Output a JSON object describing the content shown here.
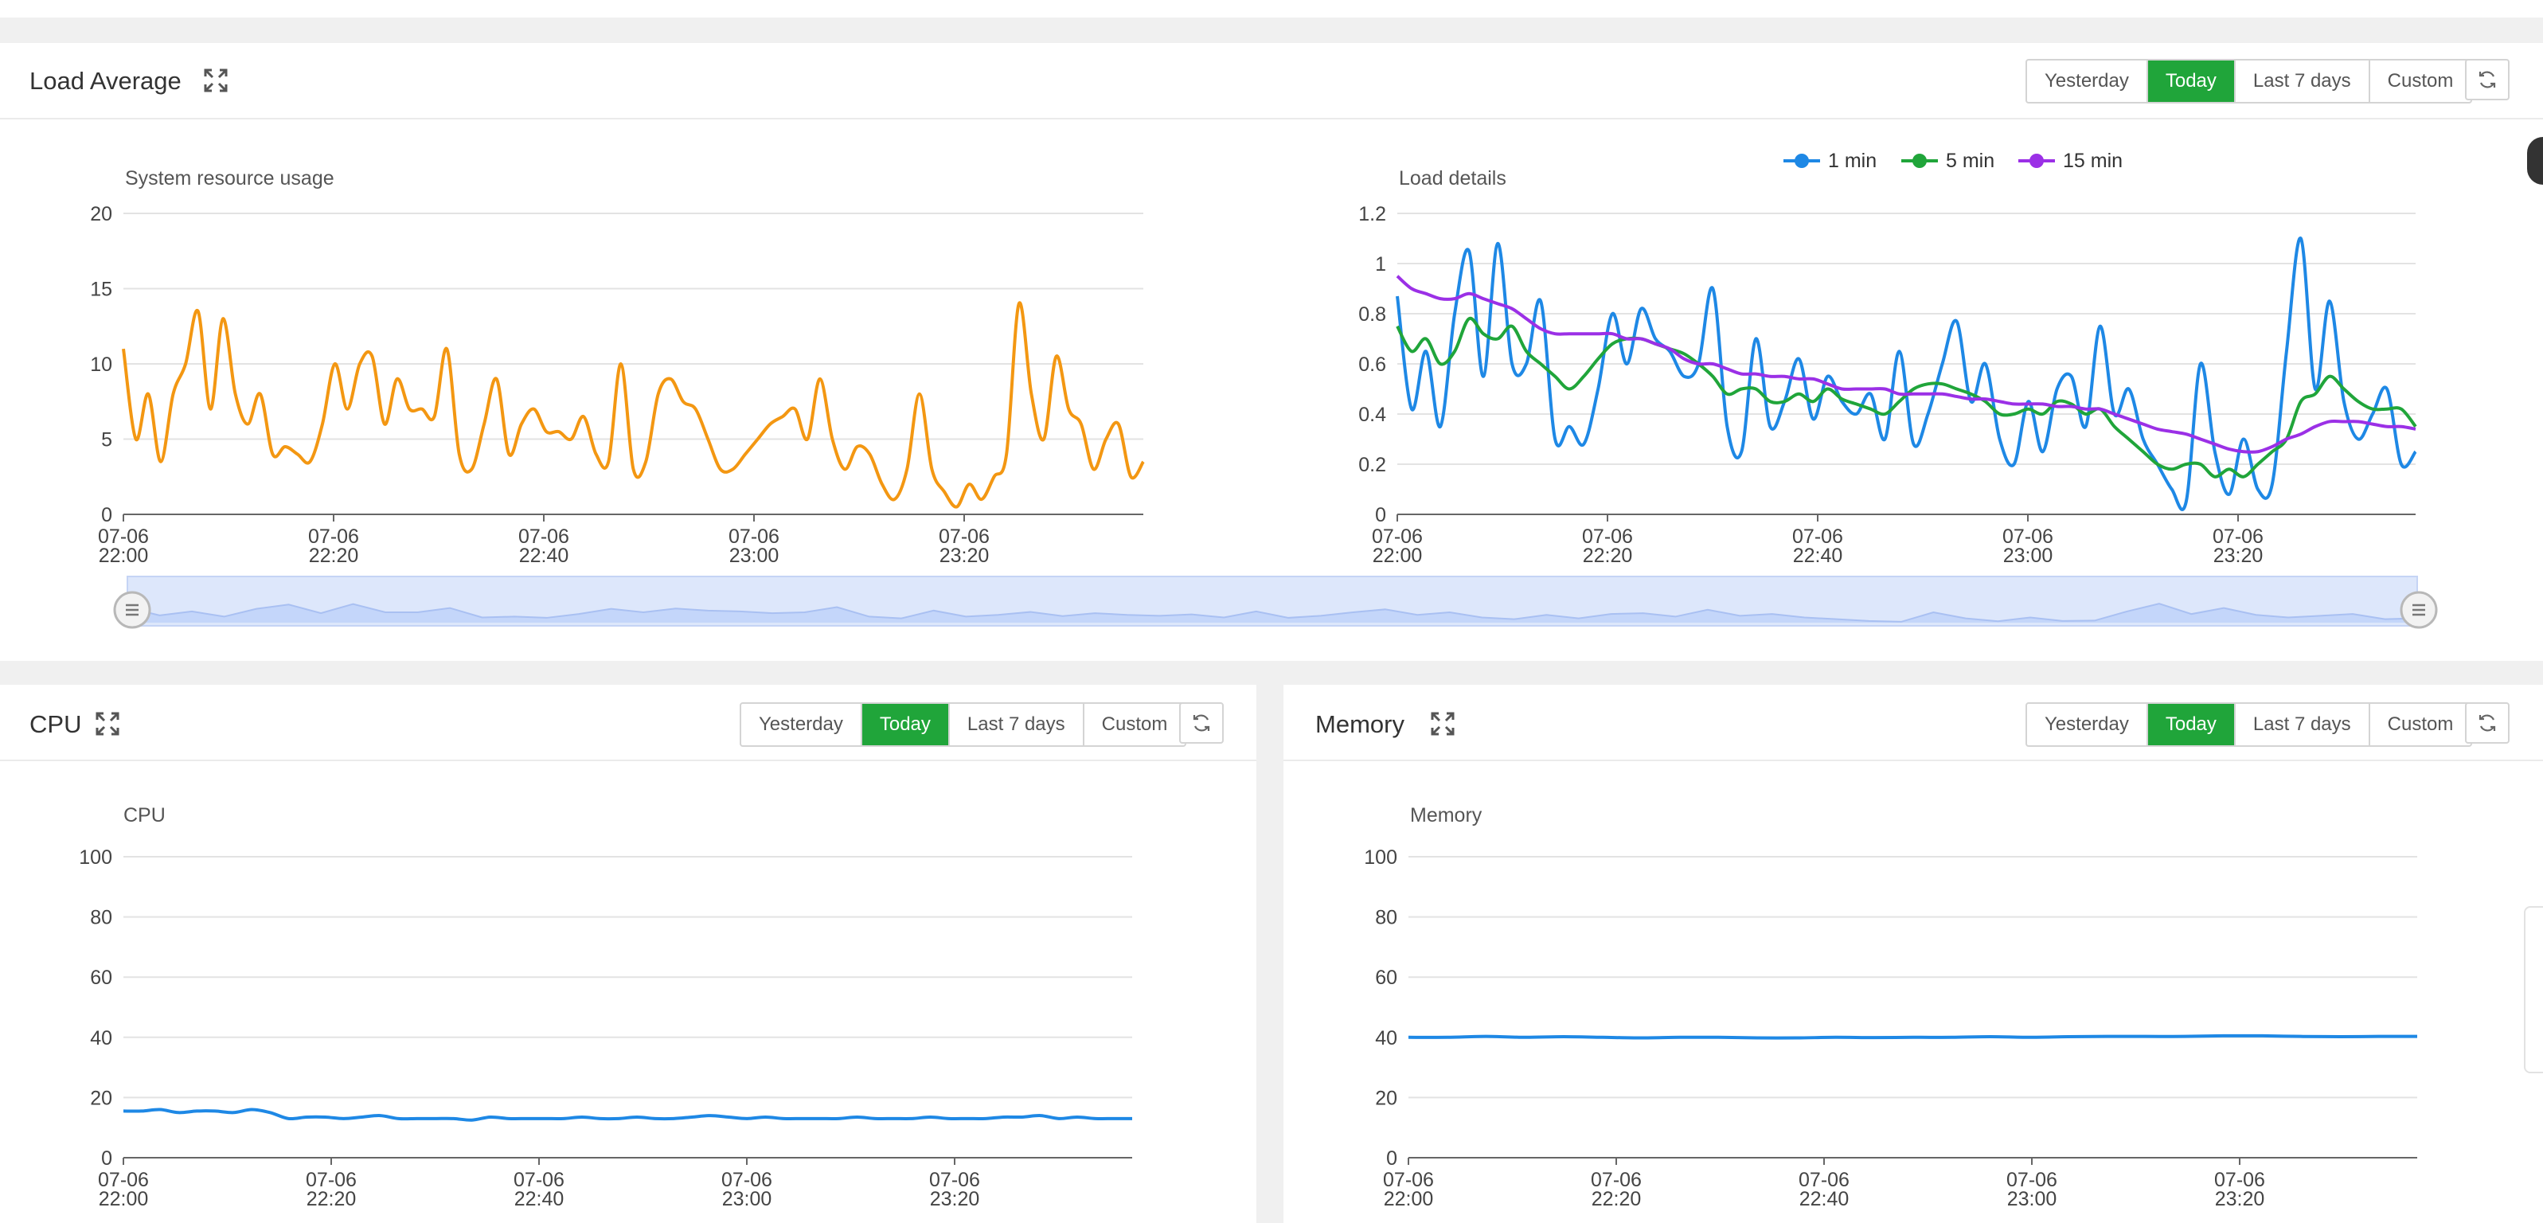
{
  "range_buttons": [
    "Yesterday",
    "Today",
    "Last 7 days",
    "Custom"
  ],
  "load_panel": {
    "title": "Load Average",
    "left_chart": {
      "title": "System resource usage",
      "yticks": [
        "0",
        "5",
        "10",
        "15",
        "20"
      ],
      "ylim": [
        0,
        20
      ],
      "xticks": [
        [
          "07-06",
          "22:00"
        ],
        [
          "07-06",
          "22:20"
        ],
        [
          "07-06",
          "22:40"
        ],
        [
          "07-06",
          "23:00"
        ],
        [
          "07-06",
          "23:20"
        ]
      ],
      "color": "#f39712",
      "values": [
        11,
        5,
        8,
        3.5,
        8,
        10,
        13.5,
        7,
        13,
        8,
        6,
        8,
        4,
        4.5,
        4,
        3.5,
        6,
        10,
        7,
        10,
        10.5,
        6,
        9,
        7,
        7,
        6.5,
        11,
        4,
        3,
        6,
        9,
        4,
        6,
        7,
        5.5,
        5.5,
        5,
        6.5,
        4,
        3.5,
        10,
        3,
        3.5,
        8,
        9,
        7.5,
        7,
        5,
        3,
        3,
        4,
        5,
        6,
        6.5,
        7,
        5,
        9,
        5,
        3,
        4.5,
        4,
        2,
        1,
        3,
        8,
        3,
        1.5,
        0.5,
        2,
        1,
        2.5,
        4,
        14,
        8,
        5,
        10.5,
        7,
        6,
        3,
        5,
        6,
        2.5,
        3.5
      ]
    },
    "right_chart": {
      "title": "Load details",
      "yticks": [
        "0",
        "0.2",
        "0.4",
        "0.6",
        "0.8",
        "1",
        "1.2"
      ],
      "ylim": [
        0,
        1.2
      ],
      "xticks": [
        [
          "07-06",
          "22:00"
        ],
        [
          "07-06",
          "22:20"
        ],
        [
          "07-06",
          "22:40"
        ],
        [
          "07-06",
          "23:00"
        ],
        [
          "07-06",
          "23:20"
        ]
      ],
      "legend": [
        "1 min",
        "5 min",
        "15 min"
      ],
      "series": [
        {
          "name": "1 min",
          "color": "#1e88e5",
          "values": [
            0.87,
            0.42,
            0.65,
            0.35,
            0.8,
            1.05,
            0.55,
            1.08,
            0.6,
            0.6,
            0.85,
            0.3,
            0.35,
            0.28,
            0.5,
            0.8,
            0.6,
            0.82,
            0.7,
            0.65,
            0.55,
            0.6,
            0.9,
            0.35,
            0.25,
            0.7,
            0.35,
            0.45,
            0.62,
            0.38,
            0.55,
            0.45,
            0.4,
            0.48,
            0.3,
            0.65,
            0.28,
            0.4,
            0.6,
            0.77,
            0.45,
            0.6,
            0.3,
            0.2,
            0.45,
            0.25,
            0.5,
            0.55,
            0.35,
            0.75,
            0.4,
            0.5,
            0.3,
            0.2,
            0.1,
            0.05,
            0.6,
            0.25,
            0.08,
            0.3,
            0.1,
            0.12,
            0.65,
            1.1,
            0.5,
            0.85,
            0.45,
            0.3,
            0.4,
            0.5,
            0.2,
            0.25
          ]
        },
        {
          "name": "5 min",
          "color": "#20a53a",
          "values": [
            0.75,
            0.65,
            0.7,
            0.6,
            0.65,
            0.78,
            0.72,
            0.7,
            0.75,
            0.65,
            0.6,
            0.55,
            0.5,
            0.55,
            0.62,
            0.68,
            0.7,
            0.7,
            0.68,
            0.66,
            0.64,
            0.6,
            0.55,
            0.48,
            0.5,
            0.5,
            0.45,
            0.45,
            0.48,
            0.45,
            0.5,
            0.46,
            0.44,
            0.42,
            0.4,
            0.45,
            0.5,
            0.52,
            0.52,
            0.5,
            0.48,
            0.45,
            0.4,
            0.4,
            0.42,
            0.4,
            0.45,
            0.44,
            0.4,
            0.42,
            0.35,
            0.3,
            0.25,
            0.2,
            0.18,
            0.2,
            0.2,
            0.15,
            0.18,
            0.15,
            0.2,
            0.25,
            0.3,
            0.45,
            0.48,
            0.55,
            0.5,
            0.45,
            0.42,
            0.42,
            0.42,
            0.35
          ]
        },
        {
          "name": "15 min",
          "color": "#9b30e6",
          "values": [
            0.95,
            0.9,
            0.88,
            0.86,
            0.86,
            0.88,
            0.86,
            0.84,
            0.82,
            0.78,
            0.74,
            0.72,
            0.72,
            0.72,
            0.72,
            0.72,
            0.7,
            0.7,
            0.68,
            0.66,
            0.62,
            0.6,
            0.6,
            0.58,
            0.56,
            0.56,
            0.55,
            0.55,
            0.54,
            0.54,
            0.52,
            0.5,
            0.5,
            0.5,
            0.5,
            0.48,
            0.48,
            0.48,
            0.48,
            0.47,
            0.46,
            0.46,
            0.45,
            0.44,
            0.44,
            0.44,
            0.43,
            0.43,
            0.42,
            0.42,
            0.4,
            0.38,
            0.36,
            0.34,
            0.33,
            0.32,
            0.3,
            0.28,
            0.26,
            0.25,
            0.25,
            0.27,
            0.3,
            0.32,
            0.35,
            0.37,
            0.37,
            0.37,
            0.36,
            0.35,
            0.35,
            0.34
          ]
        }
      ]
    }
  },
  "cpu_panel": {
    "title": "CPU",
    "chart": {
      "title": "CPU",
      "yticks": [
        "0",
        "20",
        "40",
        "60",
        "80",
        "100"
      ],
      "ylim": [
        0,
        100
      ],
      "xticks": [
        [
          "07-06",
          "22:00"
        ],
        [
          "07-06",
          "22:20"
        ],
        [
          "07-06",
          "22:40"
        ],
        [
          "07-06",
          "23:00"
        ],
        [
          "07-06",
          "23:20"
        ]
      ],
      "color": "#1e88e5",
      "values": [
        15.5,
        15.5,
        16,
        15,
        15.5,
        15.5,
        15,
        16,
        15,
        13,
        13.5,
        13.5,
        13,
        13.5,
        14,
        13,
        13,
        13,
        13,
        12.5,
        13.5,
        13,
        13,
        13,
        13,
        13.5,
        13,
        13,
        13.5,
        13,
        13,
        13.5,
        14,
        13.5,
        13,
        13.5,
        13,
        13,
        13,
        13,
        13.5,
        13,
        13,
        13,
        13.5,
        13,
        13,
        13,
        13.5,
        13.5,
        14,
        13,
        13.5,
        13,
        13,
        13
      ]
    }
  },
  "memory_panel": {
    "title": "Memory",
    "chart": {
      "title": "Memory",
      "yticks": [
        "0",
        "20",
        "40",
        "60",
        "80",
        "100"
      ],
      "ylim": [
        0,
        100
      ],
      "xticks": [
        [
          "07-06",
          "22:00"
        ],
        [
          "07-06",
          "22:20"
        ],
        [
          "07-06",
          "22:40"
        ],
        [
          "07-06",
          "23:00"
        ],
        [
          "07-06",
          "23:20"
        ]
      ],
      "color": "#1e88e5",
      "values": [
        40,
        40,
        40.3,
        40,
        40.2,
        40,
        39.8,
        40,
        40,
        39.8,
        39.8,
        40,
        39.9,
        40,
        40,
        40.2,
        40,
        40.2,
        40.3,
        40.3,
        40.3,
        40.5,
        40.5,
        40.3,
        40.2,
        40.3,
        40.3
      ]
    }
  },
  "colors": {
    "accent": "#20a53a",
    "orange": "#f39712",
    "blue": "#1e88e5",
    "green": "#20a53a",
    "purple": "#9b30e6"
  }
}
